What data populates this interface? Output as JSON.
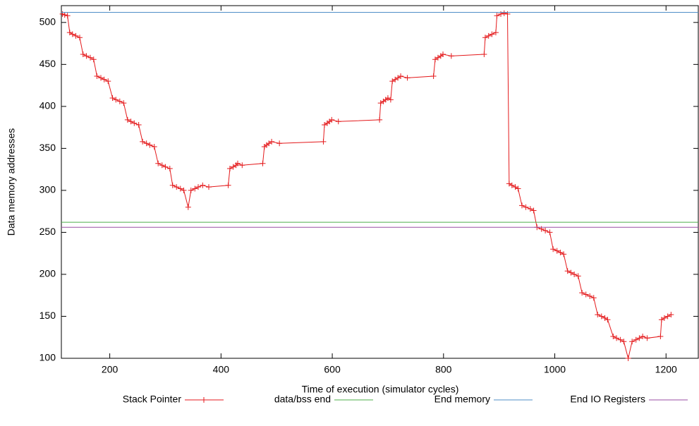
{
  "chart_data": {
    "type": "line",
    "xlabel": "Time of execution (simulator cycles)",
    "ylabel": "Data memory addresses",
    "xlim": [
      113,
      1258
    ],
    "xticks": [
      200,
      400,
      600,
      800,
      1000,
      1200
    ],
    "ylim": [
      100,
      520
    ],
    "yticks": [
      100,
      150,
      200,
      250,
      300,
      350,
      400,
      450,
      500
    ],
    "series": [
      {
        "name": "Stack Pointer",
        "color": "#e41a1c",
        "marker": "+",
        "x": [
          115,
          119,
          124,
          128,
          133,
          139,
          146,
          152,
          158,
          165,
          171,
          177,
          184,
          190,
          197,
          205,
          211,
          218,
          225,
          232,
          238,
          244,
          252,
          259,
          266,
          272,
          280,
          287,
          294,
          300,
          308,
          313,
          320,
          327,
          333,
          341,
          346,
          353,
          359,
          367,
          378,
          413,
          416,
          422,
          427,
          430,
          438,
          475,
          478,
          482,
          486,
          491,
          505,
          584,
          586,
          591,
          595,
          599,
          611,
          685,
          687,
          692,
          696,
          700,
          705,
          708,
          713,
          718,
          723,
          735,
          782,
          785,
          790,
          795,
          799,
          814,
          873,
          875,
          881,
          887,
          894,
          896,
          903,
          909,
          915,
          918,
          923,
          929,
          934,
          941,
          948,
          956,
          962,
          968,
          976,
          983,
          991,
          997,
          1004,
          1010,
          1016,
          1023,
          1029,
          1035,
          1042,
          1049,
          1056,
          1063,
          1070,
          1077,
          1084,
          1090,
          1095,
          1105,
          1111,
          1118,
          1124,
          1132,
          1139,
          1146,
          1152,
          1158,
          1166,
          1190,
          1192,
          1197,
          1203,
          1209
        ],
        "values": [
          510,
          509,
          508,
          488,
          486,
          484,
          482,
          462,
          460,
          458,
          456,
          436,
          434,
          432,
          430,
          410,
          408,
          406,
          404,
          384,
          382,
          380,
          378,
          358,
          356,
          354,
          352,
          332,
          330,
          328,
          326,
          306,
          304,
          302,
          300,
          280,
          300,
          302,
          304,
          306,
          304,
          306,
          326,
          328,
          330,
          332,
          330,
          332,
          352,
          354,
          356,
          358,
          356,
          358,
          378,
          380,
          382,
          384,
          382,
          384,
          404,
          406,
          408,
          410,
          408,
          430,
          432,
          434,
          436,
          434,
          436,
          456,
          458,
          460,
          462,
          460,
          462,
          482,
          484,
          486,
          488,
          508,
          510,
          511,
          510,
          308,
          306,
          304,
          302,
          282,
          280,
          278,
          276,
          256,
          254,
          252,
          250,
          230,
          228,
          226,
          224,
          204,
          202,
          200,
          198,
          178,
          176,
          174,
          172,
          152,
          150,
          148,
          146,
          126,
          124,
          122,
          120,
          100,
          120,
          122,
          124,
          126,
          124,
          126,
          146,
          148,
          150,
          152
        ]
      },
      {
        "name": "data/bss end",
        "color": "#4daf4a",
        "value": 262
      },
      {
        "name": "End memory",
        "color": "#4f8fc7",
        "value": 512
      },
      {
        "name": "End IO Registers",
        "color": "#984ea3",
        "value": 256
      }
    ]
  }
}
